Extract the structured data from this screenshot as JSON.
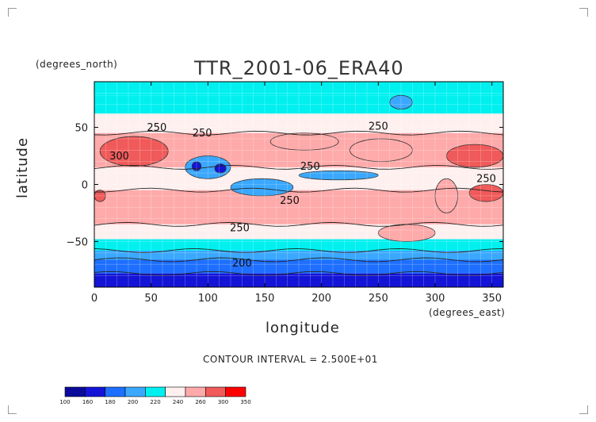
{
  "chart_data": {
    "type": "heatmap",
    "title": "TTR_2001-06_ERA40",
    "xlabel": "longitude",
    "ylabel": "latitude",
    "x_unit": "(degrees_east)",
    "y_unit": "(degrees_north)",
    "xlim": [
      0,
      360
    ],
    "ylim": [
      -90,
      90
    ],
    "x_ticks": [
      0,
      50,
      100,
      150,
      200,
      250,
      300,
      350
    ],
    "y_ticks": [
      -50,
      0,
      50
    ],
    "contour_interval_text": "CONTOUR INTERVAL = 2.500E+01",
    "contour_labels": [
      {
        "text": "250",
        "lon": 55,
        "lat": 47
      },
      {
        "text": "300",
        "lon": 22,
        "lat": 22
      },
      {
        "text": "250",
        "lon": 95,
        "lat": 42
      },
      {
        "text": "250",
        "lon": 190,
        "lat": 13
      },
      {
        "text": "250",
        "lon": 250,
        "lat": 48
      },
      {
        "text": "250",
        "lon": 172,
        "lat": -17
      },
      {
        "text": "250",
        "lon": 345,
        "lat": 2
      },
      {
        "text": "250",
        "lon": 128,
        "lat": -41
      },
      {
        "text": "200",
        "lon": 130,
        "lat": -72
      }
    ],
    "colorbar": {
      "levels": [
        "100",
        "160",
        "180",
        "200",
        "220",
        "240",
        "260",
        "300",
        "350"
      ],
      "colors": [
        "#0a0a9a",
        "#1414d6",
        "#1e6fff",
        "#3aa8ff",
        "#00f0f0",
        "#fff0f0",
        "#ffaaaa",
        "#f05a5a",
        "#ff0000"
      ]
    },
    "zonal_bands": [
      {
        "lat_from": 90,
        "lat_to": 78,
        "value": 230
      },
      {
        "lat_from": 78,
        "lat_to": 62,
        "value": 238
      },
      {
        "lat_from": 62,
        "lat_to": 45,
        "value": 250
      },
      {
        "lat_from": 45,
        "lat_to": 15,
        "value": 275
      },
      {
        "lat_from": 15,
        "lat_to": -5,
        "value": 245
      },
      {
        "lat_from": -5,
        "lat_to": -35,
        "value": 275
      },
      {
        "lat_from": -35,
        "lat_to": -48,
        "value": 250
      },
      {
        "lat_from": -48,
        "lat_to": -58,
        "value": 235
      },
      {
        "lat_from": -58,
        "lat_to": -66,
        "value": 215
      },
      {
        "lat_from": -66,
        "lat_to": -78,
        "value": 190
      },
      {
        "lat_from": -78,
        "lat_to": -90,
        "value": 165
      }
    ],
    "features": [
      {
        "lon": [
          5,
          65
        ],
        "lat": [
          16,
          42
        ],
        "value": 310
      },
      {
        "lon": [
          80,
          120
        ],
        "lat": [
          5,
          25
        ],
        "value": 210
      },
      {
        "lon": [
          86,
          94
        ],
        "lat": [
          12,
          20
        ],
        "value": 170
      },
      {
        "lon": [
          106,
          116
        ],
        "lat": [
          10,
          18
        ],
        "value": 170
      },
      {
        "lon": [
          120,
          175
        ],
        "lat": [
          -10,
          5
        ],
        "value": 215
      },
      {
        "lon": [
          180,
          250
        ],
        "lat": [
          4,
          12
        ],
        "value": 215
      },
      {
        "lon": [
          225,
          280
        ],
        "lat": [
          20,
          40
        ],
        "value": 280
      },
      {
        "lon": [
          155,
          215
        ],
        "lat": [
          30,
          45
        ],
        "value": 265
      },
      {
        "lon": [
          310,
          360
        ],
        "lat": [
          15,
          35
        ],
        "value": 300
      },
      {
        "lon": [
          330,
          360
        ],
        "lat": [
          -15,
          0
        ],
        "value": 300
      },
      {
        "lon": [
          0,
          10
        ],
        "lat": [
          -15,
          -5
        ],
        "value": 300
      },
      {
        "lon": [
          300,
          320
        ],
        "lat": [
          -25,
          5
        ],
        "value": 265
      },
      {
        "lon": [
          260,
          280
        ],
        "lat": [
          66,
          78
        ],
        "value": 215
      },
      {
        "lon": [
          250,
          300
        ],
        "lat": [
          -50,
          -35
        ],
        "value": 265
      }
    ]
  }
}
